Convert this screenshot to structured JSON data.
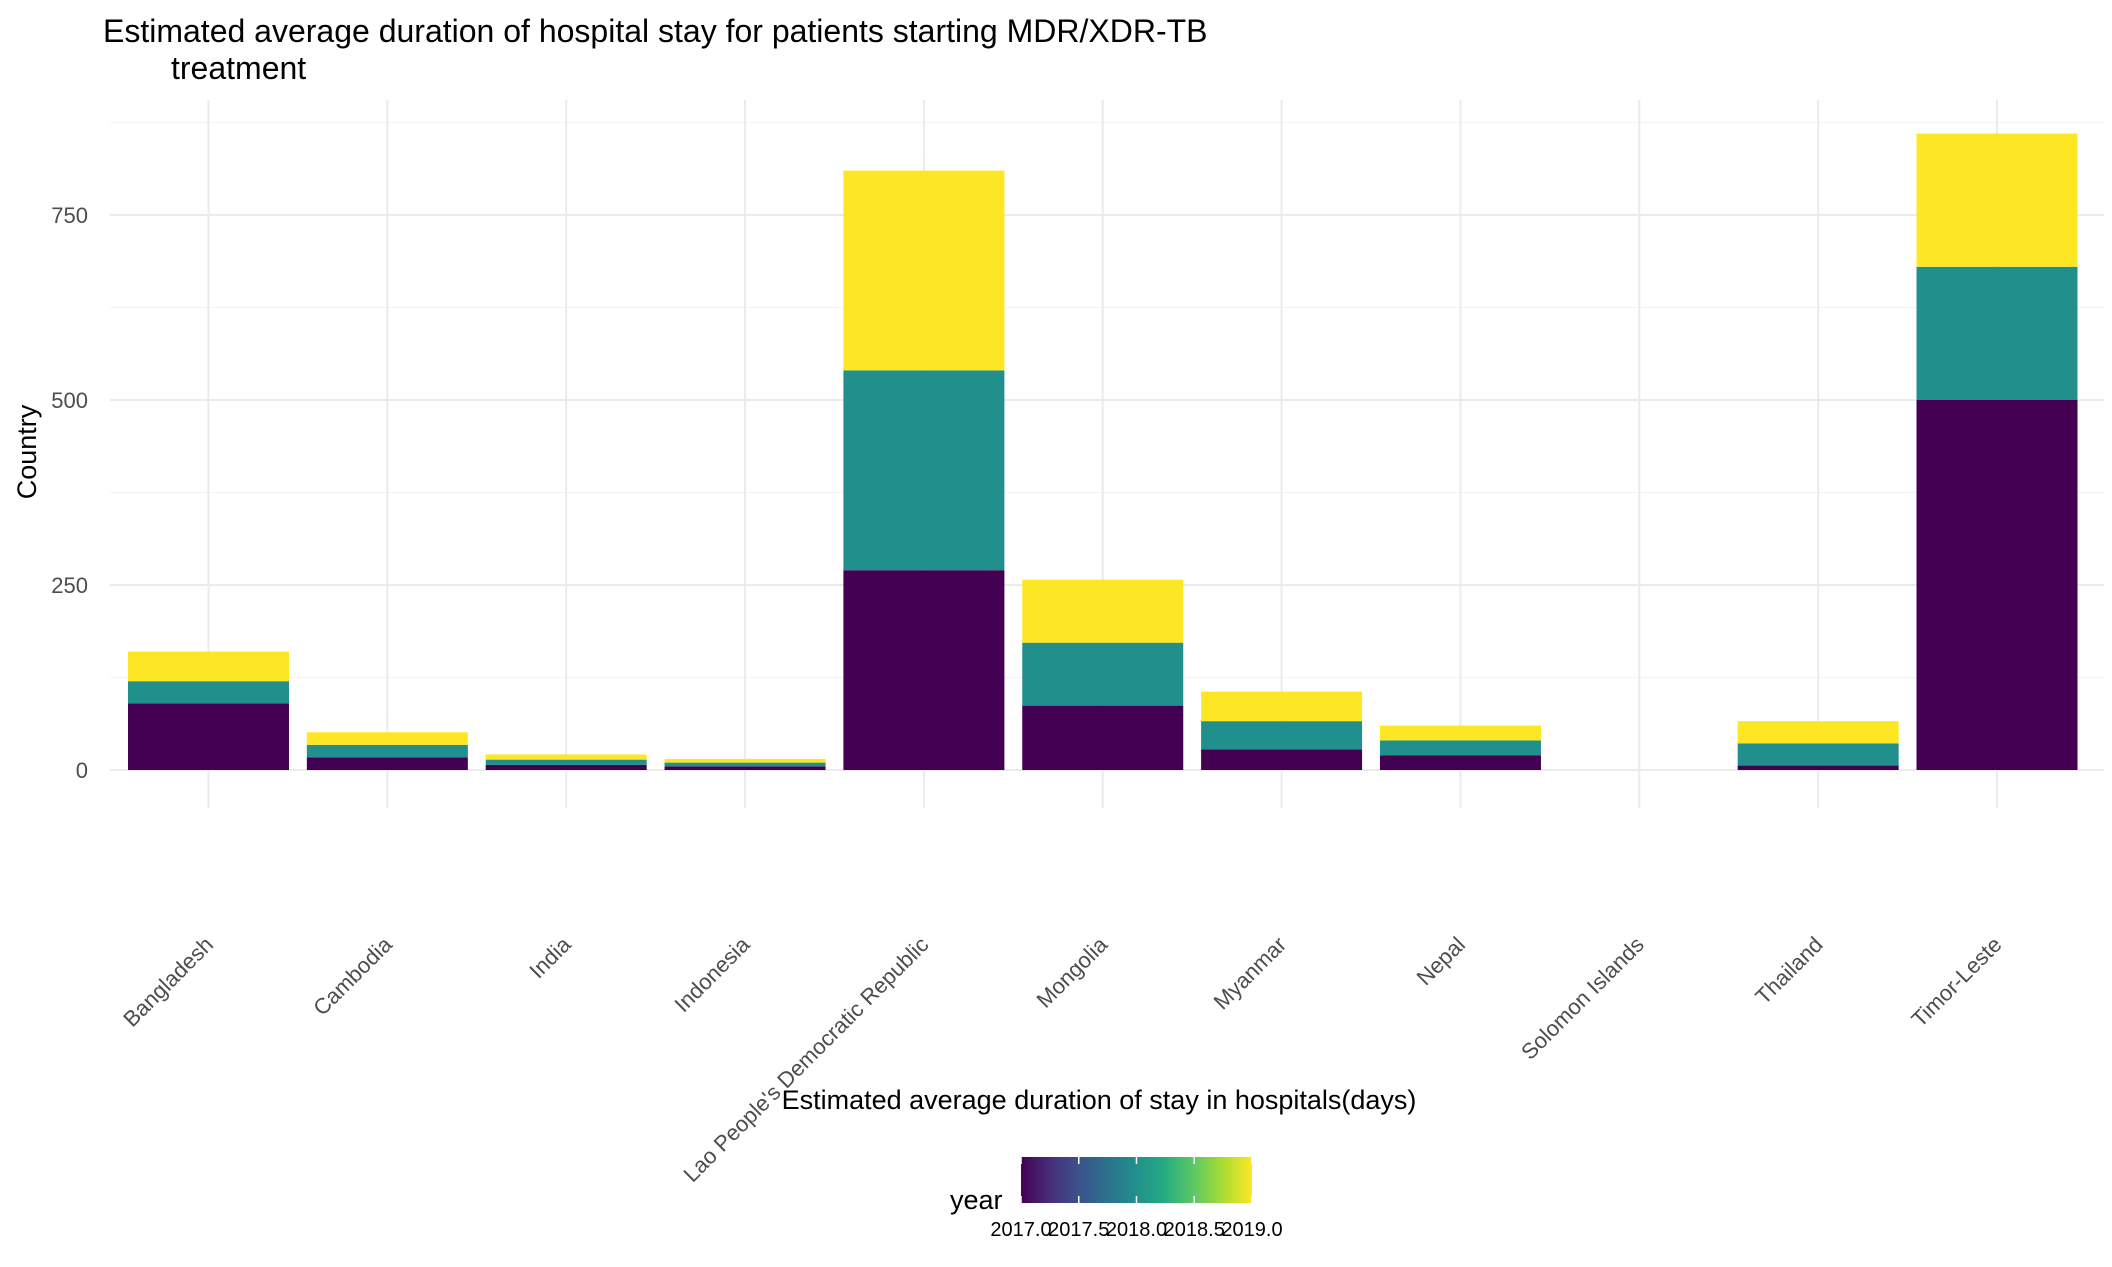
{
  "chart_data": {
    "type": "bar",
    "stacked": true,
    "title_line1": "Estimated average duration of hospital stay for patients starting MDR/XDR-TB",
    "title_line2": "treatment",
    "xlabel": "Estimated average duration of stay in hospitals(days)",
    "ylabel": "Country",
    "categories": [
      "Bangladesh",
      "Cambodia",
      "India",
      "Indonesia",
      "Lao People's Democratic Republic",
      "Mongolia",
      "Myanmar",
      "Nepal",
      "Solomon Islands",
      "Thailand",
      "Timor-Leste"
    ],
    "series": [
      {
        "year": 2017,
        "color": "#440154",
        "values": [
          90,
          17,
          7,
          5,
          270,
          87,
          28,
          20,
          0,
          6,
          500
        ]
      },
      {
        "year": 2018,
        "color": "#21908C",
        "values": [
          30,
          17,
          7,
          5,
          270,
          85,
          38,
          20,
          0,
          30,
          180
        ]
      },
      {
        "year": 2019,
        "color": "#FDE725",
        "values": [
          40,
          17,
          7,
          5,
          270,
          85,
          40,
          20,
          0,
          30,
          180
        ]
      }
    ],
    "y_ticks": [
      0,
      250,
      500,
      750
    ],
    "y_tick_labels": [
      "0",
      "250",
      "500",
      "750"
    ],
    "ylim": [
      0,
      900
    ],
    "grid": true,
    "legend": {
      "title": "year",
      "position": "bottom",
      "type": "colorbar",
      "palette": "viridis",
      "range": [
        2017,
        2019
      ],
      "tick_labels": [
        "2017.0",
        "2017.5",
        "2018.0",
        "2018.5",
        "2019.0"
      ]
    }
  }
}
